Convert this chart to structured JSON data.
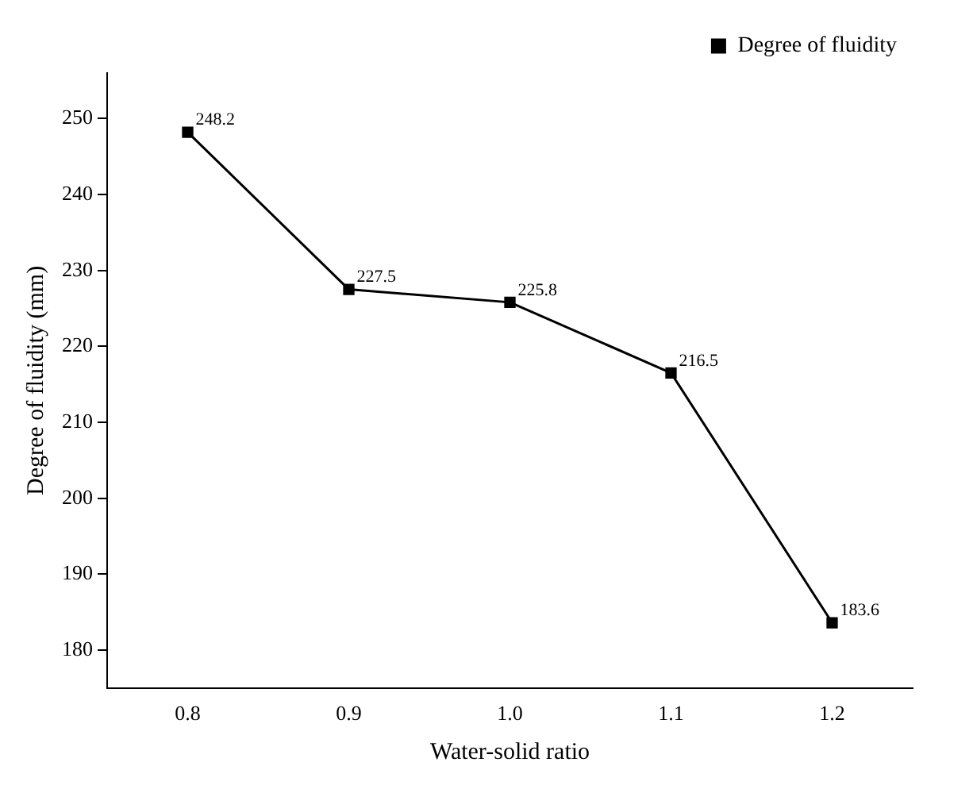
{
  "chart_data": {
    "type": "line",
    "xlabel": "Water-solid ratio",
    "ylabel": "Degree of fluidity (mm)",
    "x": [
      0.8,
      0.9,
      1.0,
      1.1,
      1.2
    ],
    "series": [
      {
        "name": "Degree of fluidity",
        "color": "#000000",
        "values": [
          248.2,
          227.5,
          225.8,
          216.5,
          183.6
        ]
      }
    ],
    "xlim": [
      0.75,
      1.25
    ],
    "xticks": [
      {
        "value": 0.8,
        "label": "0.8"
      },
      {
        "value": 0.9,
        "label": "0.9"
      },
      {
        "value": 1.0,
        "label": "1.0"
      },
      {
        "value": 1.1,
        "label": "1.1"
      },
      {
        "value": 1.2,
        "label": "1.2"
      }
    ],
    "ylim": [
      175,
      256
    ],
    "yticks": [
      180,
      190,
      200,
      210,
      220,
      230,
      240,
      250
    ],
    "grid": false,
    "legend": "top right",
    "marker": "square",
    "line_style": "solid",
    "data_labels": true
  }
}
